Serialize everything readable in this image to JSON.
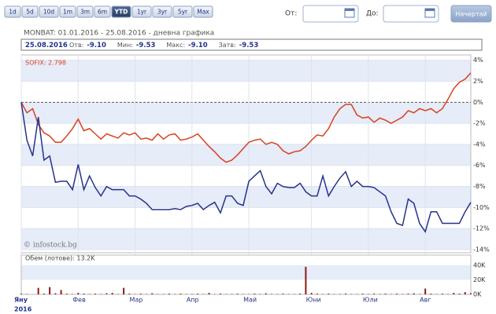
{
  "toolbar": {
    "ranges": [
      "1d",
      "5d",
      "10d",
      "1m",
      "3m",
      "6m",
      "YTD",
      "1yr",
      "3yr",
      "5yr",
      "Max"
    ],
    "active": "YTD",
    "from_label": "От:",
    "to_label": "До:",
    "button": "Начертай"
  },
  "chart_data": [
    {
      "type": "line",
      "title": "MONBAT: 01.01.2016 - 25.08.2016 - дневна графика",
      "info": {
        "date": "25.08.2016",
        "fields": [
          {
            "label": "Отв:",
            "value": "-9.10"
          },
          {
            "label": "Мин:",
            "value": "-9.53"
          },
          {
            "label": "Макс:",
            "value": "-9.10"
          },
          {
            "label": "Затв:",
            "value": "-9.53"
          }
        ]
      },
      "categories": [
        "Яну",
        null,
        null,
        null,
        null,
        null,
        null,
        null,
        null,
        null,
        "Фев",
        null,
        null,
        null,
        null,
        null,
        null,
        null,
        null,
        null,
        "Мар",
        null,
        null,
        null,
        null,
        null,
        null,
        null,
        null,
        null,
        "Апр",
        null,
        null,
        null,
        null,
        null,
        null,
        null,
        null,
        null,
        "Май",
        null,
        null,
        null,
        null,
        null,
        null,
        null,
        null,
        null,
        null,
        "Юни",
        null,
        null,
        null,
        null,
        null,
        null,
        null,
        null,
        null,
        "Юли",
        null,
        null,
        null,
        null,
        null,
        null,
        null,
        null,
        null,
        "Авг",
        null,
        null,
        null,
        null,
        null,
        null,
        null,
        null
      ],
      "x_year": "2016",
      "series": [
        {
          "name": "SOFIX: 2.798",
          "color": "#d9401f",
          "values": [
            0,
            -1.0,
            -0.6,
            -2.1,
            -2.9,
            -3.2,
            -3.8,
            -3.8,
            -3.2,
            -2.5,
            -1.6,
            -2.7,
            -2.5,
            -3.0,
            -3.5,
            -3.0,
            -3.2,
            -3.4,
            -2.9,
            -3.1,
            -2.9,
            -3.5,
            -3.4,
            -3.6,
            -3.0,
            -3.5,
            -3.1,
            -3.0,
            -3.6,
            -3.5,
            -3.3,
            -3.0,
            -3.6,
            -4.2,
            -4.7,
            -5.3,
            -5.7,
            -5.5,
            -5.0,
            -4.4,
            -3.8,
            -3.6,
            -3.5,
            -4.0,
            -3.8,
            -4.0,
            -4.6,
            -4.9,
            -4.7,
            -4.6,
            -4.2,
            -3.6,
            -3.1,
            -3.2,
            -2.5,
            -1.4,
            -0.6,
            -0.2,
            -0.2,
            -1.2,
            -1.5,
            -1.4,
            -1.9,
            -1.5,
            -1.7,
            -2.0,
            -1.7,
            -1.4,
            -0.8,
            -1.0,
            -0.6,
            -0.8,
            -0.6,
            -1.0,
            -0.6,
            0.3,
            1.3,
            1.9,
            2.2,
            2.8
          ]
        },
        {
          "color": "#26338a",
          "values": [
            0,
            -3.6,
            -5.1,
            -1.4,
            -5.5,
            -5.1,
            -7.6,
            -7.5,
            -7.5,
            -8.3,
            -5.9,
            -8.3,
            -7.0,
            -8.1,
            -8.9,
            -8.0,
            -8.3,
            -8.3,
            -8.3,
            -8.9,
            -8.9,
            -9.2,
            -9.6,
            -10.2,
            -10.2,
            -10.2,
            -10.2,
            -10.1,
            -10.2,
            -9.9,
            -9.8,
            -9.6,
            -10.2,
            -9.8,
            -9.5,
            -10.5,
            -8.9,
            -8.9,
            -9.6,
            -9.8,
            -7.5,
            -7.0,
            -6.5,
            -8.0,
            -8.7,
            -7.7,
            -8.0,
            -8.1,
            -8.1,
            -7.7,
            -8.5,
            -8.9,
            -8.9,
            -7.0,
            -8.9,
            -8.0,
            -7.2,
            -6.6,
            -8.0,
            -7.5,
            -8.0,
            -8.0,
            -8.1,
            -8.5,
            -8.9,
            -10.4,
            -11.5,
            -11.7,
            -9.2,
            -9.6,
            -11.5,
            -12.3,
            -10.4,
            -10.4,
            -11.5,
            -11.5,
            -11.5,
            -11.5,
            -10.4,
            -9.5
          ]
        }
      ],
      "ylim": [
        -14.3,
        4.5
      ],
      "yticks": [
        {
          "value": 4,
          "label": "4%"
        },
        {
          "value": 2,
          "label": "2%"
        },
        {
          "value": 0,
          "label": "0%"
        },
        {
          "value": -2,
          "label": "-2%"
        },
        {
          "value": -4,
          "label": "-4%"
        },
        {
          "value": -6,
          "label": "-6%"
        },
        {
          "value": -8,
          "label": "-8%"
        },
        {
          "value": -10,
          "label": "-10%"
        },
        {
          "value": -12,
          "label": "-12%"
        },
        {
          "value": -14,
          "label": "-14%"
        }
      ],
      "watermark": "© infostock.bg"
    },
    {
      "type": "bar",
      "title": "Обем (лотове): 13.2K",
      "color": "#8b1a1a",
      "values": [
        1000,
        500,
        0,
        9000,
        1000,
        10000,
        1500,
        6000,
        1000,
        500,
        2000,
        1000,
        500,
        1000,
        500,
        1500,
        2000,
        500,
        9000,
        1000,
        500,
        1000,
        500,
        1500,
        500,
        500,
        1000,
        500,
        1000,
        500,
        500,
        1000,
        500,
        2000,
        500,
        1000,
        500,
        500,
        1000,
        500,
        500,
        1000,
        500,
        1500,
        500,
        500,
        1000,
        500,
        500,
        1000,
        38000,
        2000,
        1000,
        500,
        1000,
        500,
        500,
        1000,
        500,
        500,
        1000,
        500,
        1000,
        500,
        1000,
        500,
        1000,
        500,
        1000,
        1500,
        500,
        8000,
        1000,
        500,
        1000,
        500,
        2000,
        1000,
        3000,
        1500
      ],
      "ylim": [
        0,
        54000
      ],
      "yticks": [
        {
          "value": 0,
          "label": "0K"
        },
        {
          "value": 20000,
          "label": "20K"
        },
        {
          "value": 40000,
          "label": "40K"
        }
      ]
    }
  ]
}
